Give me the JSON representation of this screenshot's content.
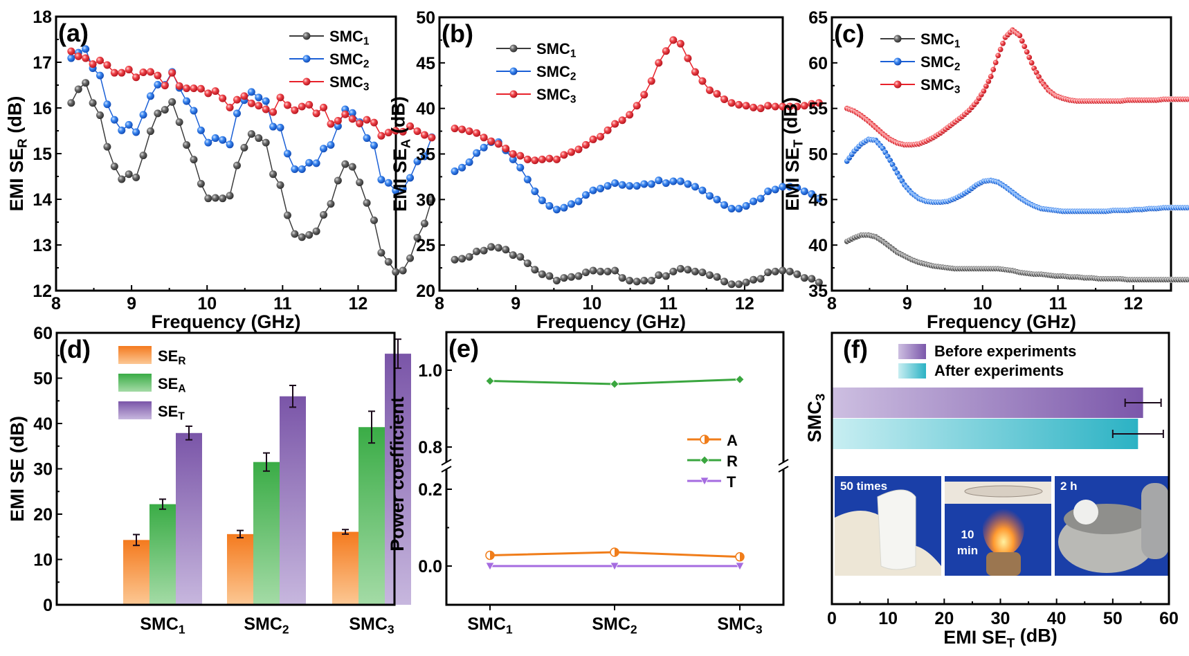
{
  "chart_data": [
    {
      "panel": "a",
      "type": "line",
      "panel_label": "(a)",
      "xlabel": "Frequency (GHz)",
      "ylabel": "EMI SE",
      "ylabel_sub": "R",
      "ylabel_unit": " (dB)",
      "xlim": [
        8,
        12.5
      ],
      "ylim": [
        12,
        18
      ],
      "xticks": [
        8,
        9,
        10,
        11,
        12
      ],
      "yticks": [
        12,
        13,
        14,
        15,
        16,
        17,
        18
      ],
      "x_start": 8.2,
      "x_step": 0.0955,
      "legend_position": "top-right",
      "series": [
        {
          "name": "SMC",
          "sub": "1",
          "color": "#3c3c3c",
          "values": [
            16.11,
            16.41,
            16.55,
            16.11,
            15.84,
            15.15,
            14.72,
            14.44,
            14.55,
            14.48,
            14.96,
            15.49,
            15.88,
            15.96,
            16.13,
            15.69,
            15.19,
            14.87,
            14.34,
            14.02,
            14.03,
            14.02,
            14.08,
            14.74,
            15.13,
            15.43,
            15.34,
            15.24,
            14.55,
            14.31,
            13.65,
            13.24,
            13.17,
            13.22,
            13.3,
            13.66,
            13.9,
            14.41,
            14.77,
            14.71,
            14.37,
            13.92,
            13.54,
            12.83,
            12.63,
            12.41,
            12.44,
            12.71,
            13.16,
            13.47,
            13.99
          ]
        },
        {
          "name": "SMC",
          "sub": "2",
          "color": "#1a5fd6",
          "values": [
            17.09,
            17.21,
            17.29,
            16.87,
            16.71,
            16.08,
            15.74,
            15.51,
            15.63,
            15.47,
            15.85,
            16.26,
            16.51,
            16.51,
            16.79,
            16.44,
            16.15,
            15.94,
            15.51,
            15.24,
            15.34,
            15.3,
            15.2,
            15.88,
            16.17,
            16.35,
            16.23,
            16.15,
            15.59,
            15.57,
            15.0,
            14.66,
            14.66,
            14.8,
            14.79,
            15.11,
            15.19,
            15.6,
            15.97,
            15.89,
            15.69,
            15.34,
            15.18,
            14.43,
            14.36,
            14.19,
            14.23,
            14.47,
            14.83,
            14.94,
            15.36
          ]
        },
        {
          "name": "SMC",
          "sub": "3",
          "color": "#e8212a",
          "values": [
            17.24,
            17.13,
            17.09,
            16.96,
            17.04,
            16.94,
            16.77,
            16.77,
            16.84,
            16.67,
            16.78,
            16.79,
            16.71,
            16.49,
            16.77,
            16.48,
            16.43,
            16.43,
            16.42,
            16.32,
            16.37,
            16.21,
            16.01,
            16.18,
            16.26,
            16.1,
            16.05,
            15.97,
            15.91,
            16.23,
            16.06,
            15.95,
            16.03,
            16.07,
            15.88,
            16.01,
            15.65,
            15.72,
            15.86,
            15.76,
            15.66,
            15.74,
            15.68,
            15.39,
            15.46,
            15.5,
            15.48,
            15.6,
            15.49,
            15.41,
            15.35
          ]
        }
      ]
    },
    {
      "panel": "b",
      "type": "line",
      "panel_label": "(b)",
      "xlabel": "Frequency (GHz)",
      "ylabel": "EMI SE",
      "ylabel_sub": "A",
      "ylabel_unit": " (dB)",
      "xlim": [
        8,
        12.5
      ],
      "ylim": [
        20,
        50
      ],
      "xticks": [
        8,
        9,
        10,
        11,
        12
      ],
      "yticks": [
        20,
        25,
        30,
        35,
        40,
        45,
        50
      ],
      "x_start": 8.2,
      "x_step": 0.0955,
      "legend_position": "top-left",
      "series": [
        {
          "name": "SMC",
          "sub": "1",
          "color": "#3c3c3c",
          "values": [
            23.4,
            23.5,
            23.7,
            24.3,
            24.4,
            24.8,
            24.7,
            24.5,
            23.9,
            23.7,
            23.0,
            22.3,
            21.8,
            21.6,
            21.1,
            21.4,
            21.5,
            21.6,
            22.0,
            22.2,
            22.1,
            22.1,
            22.2,
            21.4,
            21.1,
            21.0,
            21.1,
            21.1,
            21.7,
            21.6,
            22.1,
            22.4,
            22.3,
            22.1,
            22.0,
            21.7,
            21.5,
            21.0,
            20.7,
            20.7,
            20.9,
            21.2,
            21.3,
            22.0,
            22.1,
            22.2,
            22.1,
            21.8,
            21.4,
            21.3,
            20.9
          ]
        },
        {
          "name": "SMC",
          "sub": "2",
          "color": "#1a5fd6",
          "values": [
            33.1,
            33.5,
            34.1,
            35.1,
            35.7,
            36.3,
            36.3,
            35.4,
            34.4,
            33.5,
            32.2,
            30.9,
            29.9,
            29.3,
            28.9,
            29.1,
            29.5,
            29.8,
            30.5,
            31.0,
            31.2,
            31.5,
            31.8,
            31.6,
            31.5,
            31.5,
            31.7,
            31.7,
            32.1,
            31.8,
            32.0,
            32.0,
            31.7,
            31.4,
            31.0,
            30.4,
            30.0,
            29.4,
            29.0,
            29.0,
            29.3,
            29.8,
            30.1,
            30.9,
            31.1,
            31.4,
            31.4,
            31.3,
            30.9,
            30.6,
            30.1
          ]
        },
        {
          "name": "SMC",
          "sub": "3",
          "color": "#e8212a",
          "values": [
            37.8,
            37.7,
            37.5,
            37.3,
            36.8,
            36.4,
            36.1,
            35.6,
            35.0,
            34.8,
            34.4,
            34.3,
            34.4,
            34.5,
            34.4,
            34.9,
            35.2,
            35.5,
            36.0,
            36.6,
            36.9,
            37.6,
            38.3,
            38.7,
            39.3,
            40.3,
            41.5,
            43.0,
            45.0,
            46.3,
            47.5,
            47.1,
            45.5,
            44.0,
            43.0,
            42.0,
            41.6,
            41.0,
            40.6,
            40.4,
            40.3,
            40.1,
            40.0,
            40.3,
            40.2,
            40.2,
            40.2,
            40.2,
            40.3,
            40.5,
            40.6
          ]
        }
      ]
    },
    {
      "panel": "c",
      "type": "line",
      "panel_label": "(c)",
      "xlabel": "Frequency (GHz)",
      "ylabel": "EMI SE",
      "ylabel_sub": "T",
      "ylabel_unit": " (dB)",
      "xlim": [
        8,
        12.5
      ],
      "ylim": [
        35,
        65
      ],
      "xticks": [
        8,
        9,
        10,
        11,
        12
      ],
      "yticks": [
        35,
        40,
        45,
        50,
        55,
        60,
        65
      ],
      "x_start": 8.2,
      "x_step": 0.0955,
      "legend_position": "top-left",
      "series": [
        {
          "name": "SMC",
          "sub": "1",
          "color": "#3c3c3c",
          "values": [
            40.4,
            40.8,
            41.1,
            41.1,
            40.9,
            40.4,
            39.8,
            39.2,
            38.8,
            38.4,
            38.1,
            37.9,
            37.7,
            37.6,
            37.5,
            37.4,
            37.4,
            37.4,
            37.4,
            37.4,
            37.4,
            37.4,
            37.3,
            37.2,
            37.0,
            36.9,
            36.8,
            36.8,
            36.7,
            36.6,
            36.6,
            36.5,
            36.5,
            36.4,
            36.4,
            36.3,
            36.3,
            36.3,
            36.3,
            36.2,
            36.2,
            36.2,
            36.2,
            36.2,
            36.2,
            36.2,
            36.2,
            36.2,
            36.2,
            36.2,
            36.2
          ]
        },
        {
          "name": "SMC",
          "sub": "2",
          "color": "#1a5fd6",
          "values": [
            49.2,
            50.3,
            51.1,
            51.6,
            51.5,
            50.6,
            49.3,
            47.9,
            46.6,
            45.7,
            45.1,
            44.8,
            44.7,
            44.7,
            44.8,
            45.1,
            45.5,
            46.0,
            46.6,
            47.0,
            47.1,
            46.9,
            46.4,
            45.8,
            45.2,
            44.7,
            44.3,
            44.0,
            43.9,
            43.8,
            43.7,
            43.7,
            43.7,
            43.7,
            43.7,
            43.7,
            43.7,
            43.8,
            43.8,
            43.8,
            43.9,
            43.9,
            44.0,
            44.0,
            44.1,
            44.1,
            44.1,
            44.1,
            44.1,
            44.1,
            44.1
          ]
        },
        {
          "name": "SMC",
          "sub": "3",
          "color": "#e8212a",
          "values": [
            55.0,
            54.7,
            54.2,
            53.6,
            52.9,
            52.2,
            51.6,
            51.2,
            51.0,
            51.0,
            51.1,
            51.4,
            51.8,
            52.3,
            52.9,
            53.5,
            54.1,
            54.8,
            55.7,
            56.9,
            58.5,
            60.8,
            62.8,
            63.6,
            63.0,
            61.2,
            59.4,
            58.0,
            57.0,
            56.4,
            56.1,
            55.9,
            55.8,
            55.8,
            55.8,
            55.8,
            55.8,
            55.8,
            55.8,
            55.9,
            55.9,
            55.9,
            55.9,
            55.9,
            56.0,
            56.0,
            56.0,
            56.0,
            56.0,
            56.0,
            56.0
          ]
        }
      ]
    },
    {
      "panel": "d",
      "type": "bar",
      "panel_label": "(d)",
      "xlabel": "",
      "ylabel": "EMI SE (dB)",
      "ylim": [
        0,
        60
      ],
      "yticks": [
        0,
        10,
        20,
        30,
        40,
        50,
        60
      ],
      "categories": [
        {
          "name": "SMC",
          "sub": "1"
        },
        {
          "name": "SMC",
          "sub": "2"
        },
        {
          "name": "SMC",
          "sub": "3"
        }
      ],
      "legend_position": "top-left",
      "series": [
        {
          "name": "SE",
          "sub": "R",
          "color_top": "#f47a1e",
          "color_bottom": "#fcc894",
          "values": [
            14.3,
            15.6,
            16.1
          ],
          "errors": [
            1.2,
            0.8,
            0.5
          ]
        },
        {
          "name": "SE",
          "sub": "A",
          "color_top": "#3aac46",
          "color_bottom": "#a4dba6",
          "values": [
            22.2,
            31.5,
            39.2
          ],
          "errors": [
            1.1,
            2.0,
            3.5
          ]
        },
        {
          "name": "SE",
          "sub": "T",
          "color_top": "#7a55a8",
          "color_bottom": "#c7b7de",
          "values": [
            37.9,
            46.0,
            55.4
          ],
          "errors": [
            1.5,
            2.4,
            3.2
          ]
        }
      ]
    },
    {
      "panel": "e",
      "type": "line",
      "panel_label": "(e)",
      "xlabel": "",
      "ylabel": "Power coefficient",
      "ylim_lower": [
        -0.1,
        0.25
      ],
      "ylim_upper": [
        0.75,
        1.1
      ],
      "yticks": [
        "0.0",
        "0.2",
        "0.8",
        "1.0"
      ],
      "axis_break": true,
      "categories": [
        {
          "name": "SMC",
          "sub": "1"
        },
        {
          "name": "SMC",
          "sub": "2"
        },
        {
          "name": "SMC",
          "sub": "3"
        }
      ],
      "legend_position": "center-right",
      "series": [
        {
          "name": "A",
          "color": "#f07d1a",
          "marker": "half-circle",
          "values": [
            0.028,
            0.036,
            0.024
          ]
        },
        {
          "name": "R",
          "color": "#3aa63f",
          "marker": "diamond",
          "values": [
            0.972,
            0.964,
            0.976
          ]
        },
        {
          "name": "T",
          "color": "#a56be0",
          "marker": "triangle-down",
          "values": [
            0.0,
            0.0,
            0.0
          ]
        }
      ]
    },
    {
      "panel": "f",
      "type": "bar",
      "orientation": "horizontal",
      "panel_label": "(f)",
      "xlabel": "EMI SE",
      "xlabel_sub": "T",
      "xlabel_unit": " (dB)",
      "ylabel": "SMC",
      "ylabel_sub": "3",
      "xlim": [
        0,
        60
      ],
      "xticks": [
        0,
        10,
        20,
        30,
        40,
        50,
        60
      ],
      "legend_position": "top",
      "series": [
        {
          "name": "Before experiments",
          "color_left": "#cdbfe1",
          "color_right": "#7b57aa",
          "value": 55.4,
          "error": 3.2
        },
        {
          "name": "After experiments",
          "color_left": "#c8eef2",
          "color_right": "#2bb2c4",
          "value": 54.5,
          "error": 4.5
        }
      ],
      "photos": [
        {
          "label": "50 times",
          "depicts": "gloved hand bending white film"
        },
        {
          "label": "10 min",
          "depicts": "film on holder above flame"
        },
        {
          "label": "2 h",
          "depicts": "film in metal bowl"
        }
      ]
    }
  ]
}
